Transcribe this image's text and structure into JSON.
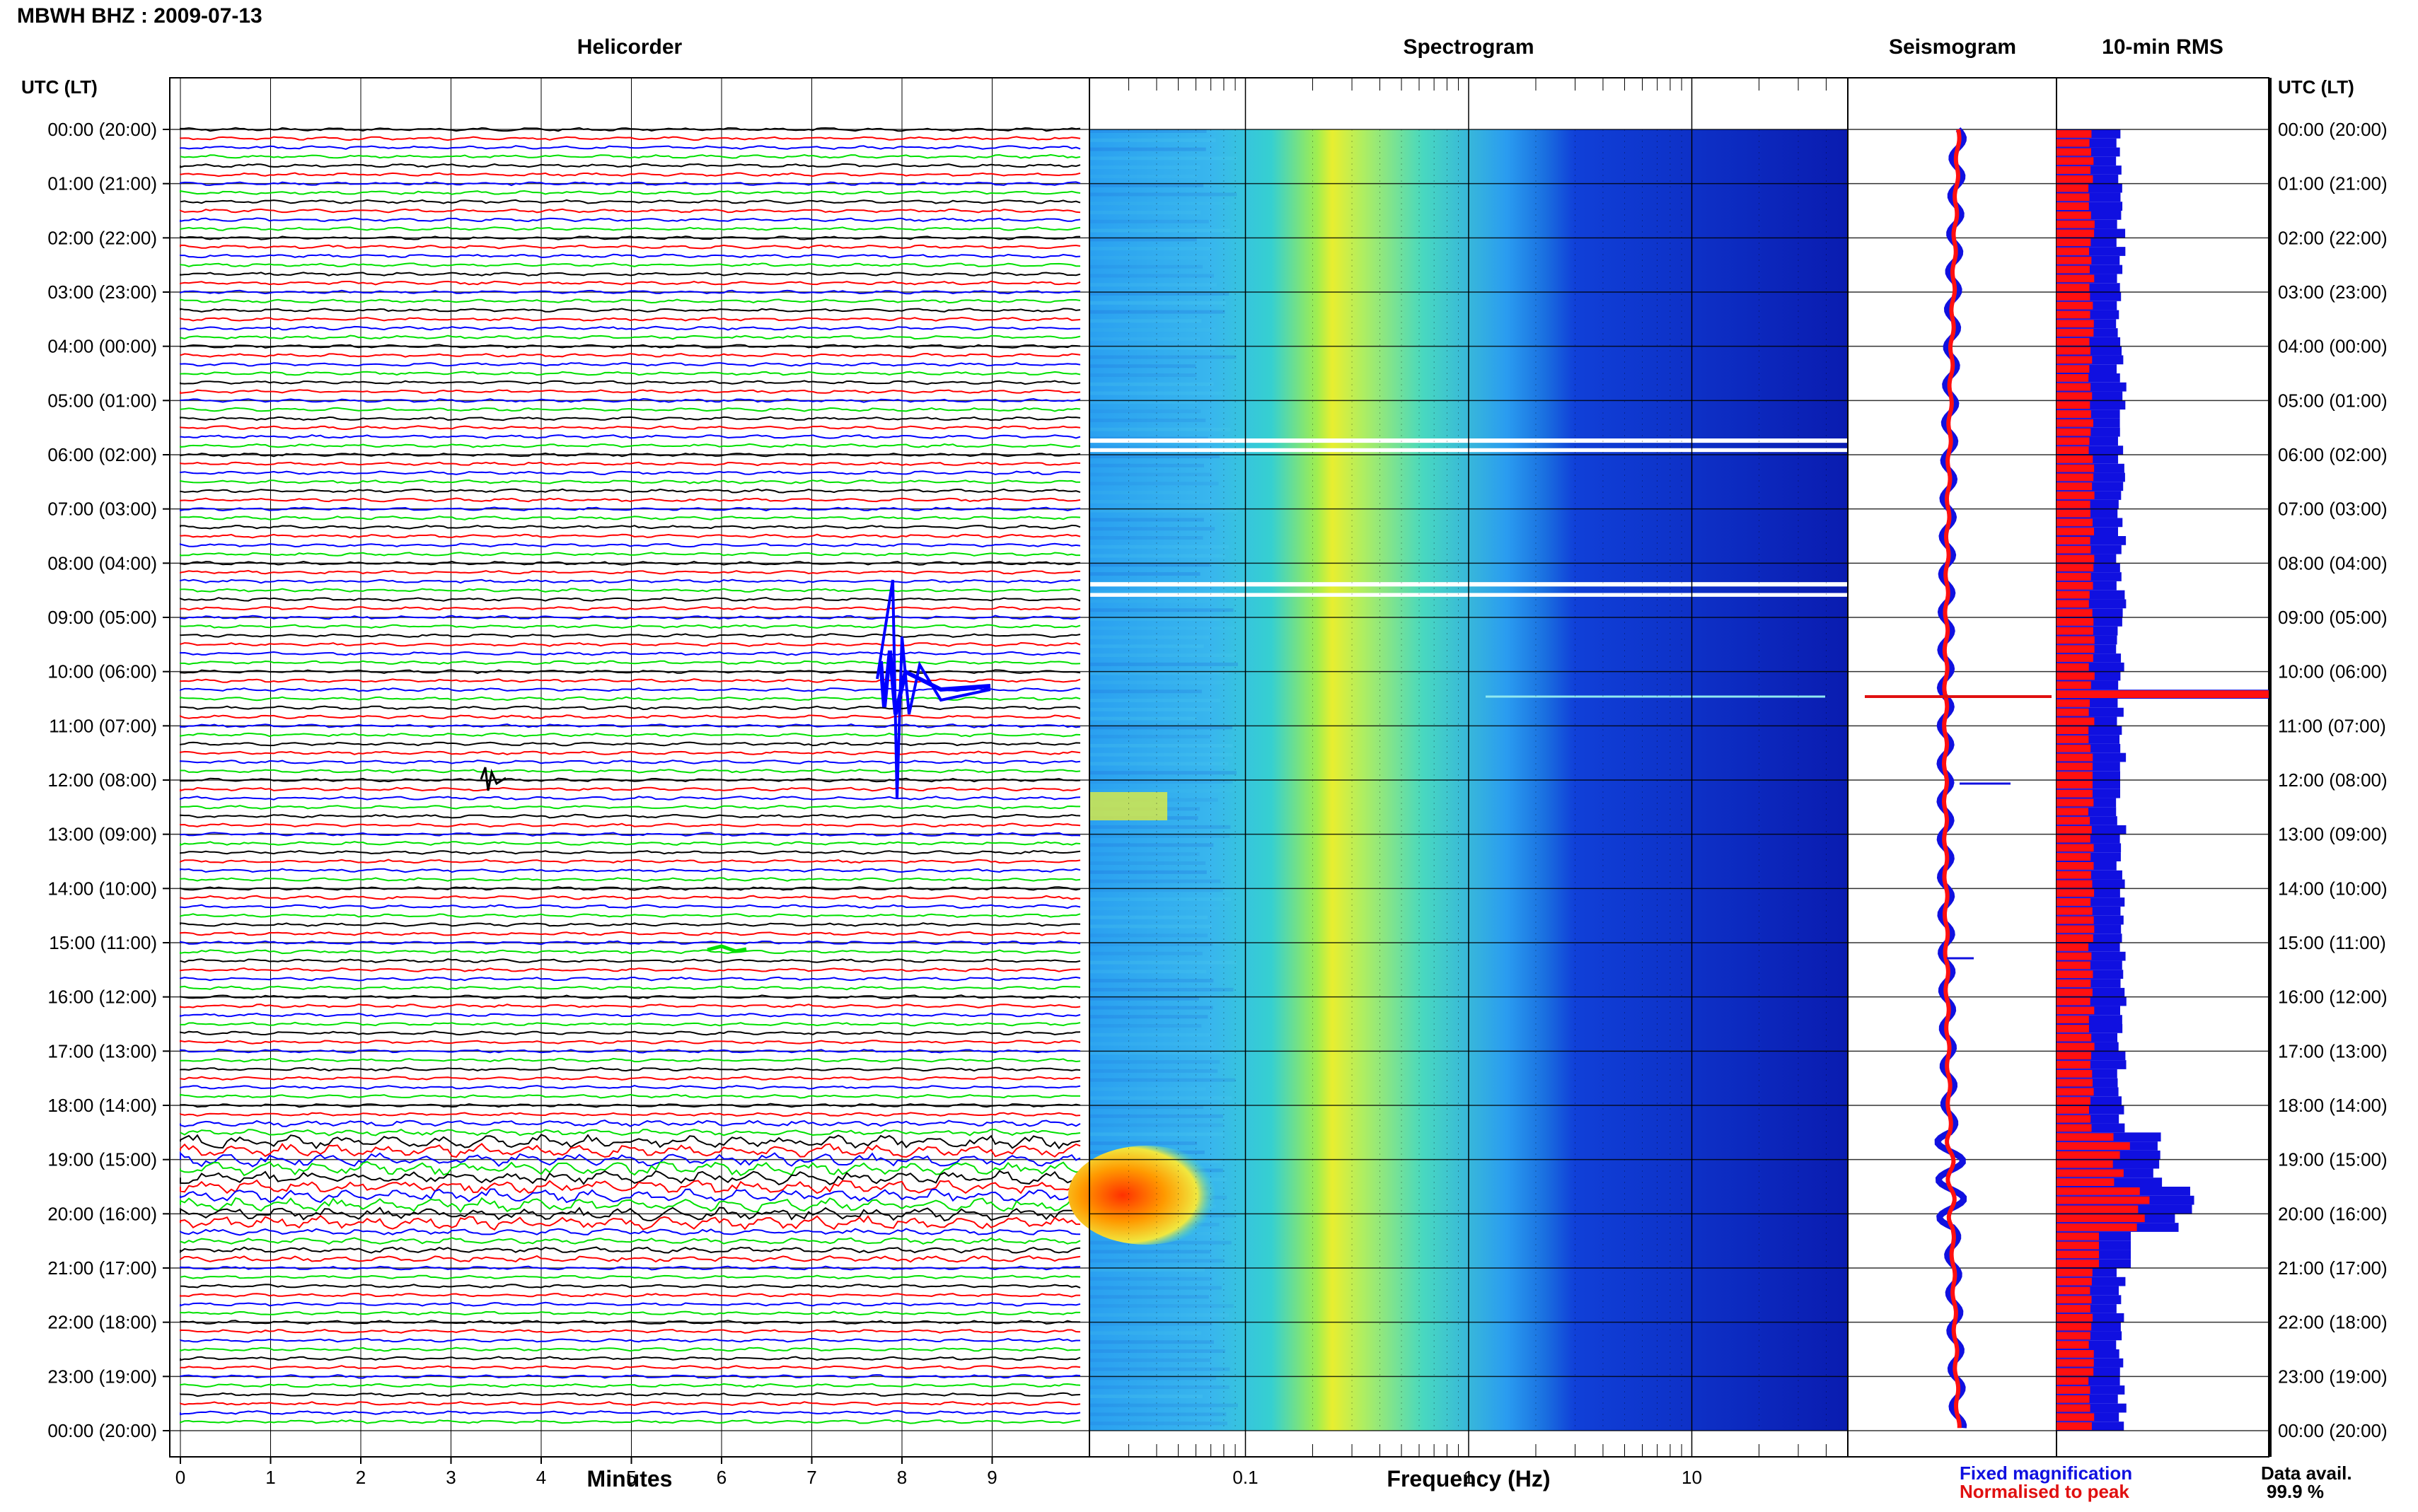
{
  "header": {
    "title": "MBWH BHZ : 2009-07-13"
  },
  "panels": {
    "helicorder": "Helicorder",
    "spectrogram": "Spectrogram",
    "seismogram": "Seismogram",
    "rms": "10-min RMS"
  },
  "axes": {
    "utc_header": "UTC (LT)",
    "minutes_label": "Minutes",
    "frequency_label": "Frequency (Hz)",
    "minute_ticks": [
      "0",
      "1",
      "2",
      "3",
      "4",
      "5",
      "6",
      "7",
      "8",
      "9"
    ],
    "frequency_ticks": [
      "0.1",
      "1",
      "10"
    ]
  },
  "time_labels": [
    "00:00 (20:00)",
    "01:00 (21:00)",
    "02:00 (22:00)",
    "03:00 (23:00)",
    "04:00 (00:00)",
    "05:00 (01:00)",
    "06:00 (02:00)",
    "07:00 (03:00)",
    "08:00 (04:00)",
    "09:00 (05:00)",
    "10:00 (06:00)",
    "11:00 (07:00)",
    "12:00 (08:00)",
    "13:00 (09:00)",
    "14:00 (10:00)",
    "15:00 (11:00)",
    "16:00 (12:00)",
    "17:00 (13:00)",
    "18:00 (14:00)",
    "19:00 (15:00)",
    "20:00 (16:00)",
    "21:00 (17:00)",
    "22:00 (18:00)",
    "23:00 (19:00)",
    "00:00 (20:00)"
  ],
  "legend": {
    "fixed": "Fixed magnification",
    "normalised": "Normalised to peak"
  },
  "availability": {
    "label": "Data avail.",
    "value": "99.9 %"
  },
  "colors": {
    "trace_cycle": [
      "#000000",
      "#ff0000",
      "#0000ff",
      "#00e000"
    ],
    "fixed": "#1010e0",
    "normalised": "#e01010"
  },
  "chart_data": [
    {
      "type": "line",
      "title": "Helicorder",
      "xlabel": "Minutes",
      "xlim": [
        0,
        10
      ],
      "y_unit": "hours UTC",
      "ylim": [
        0,
        24
      ],
      "events_hours": [
        10.3,
        12.0,
        19.7,
        20.4
      ],
      "minutes_per_trace": 10
    },
    {
      "type": "heatmap",
      "title": "Spectrogram",
      "xlabel": "Frequency (Hz)",
      "xscale": "log",
      "xlim": [
        0.02,
        50
      ],
      "ylim": [
        0,
        24
      ],
      "gaps_hours": [
        5.7,
        5.9,
        8.3,
        8.6
      ],
      "low_freq_energy_hours": [
        [
          11.5,
          13.0
        ],
        [
          18.5,
          21.0
        ]
      ],
      "secondary_microseism_hz": 0.25,
      "spectral_line_hz": 10
    },
    {
      "type": "line",
      "title": "Seismogram",
      "series": [
        {
          "name": "Fixed magnification",
          "hours": [
            0,
            10.5,
            12.0,
            18.5,
            19.5,
            20.0,
            24
          ]
        },
        {
          "name": "Normalised to peak",
          "hours": [
            0,
            24
          ]
        }
      ]
    },
    {
      "type": "bar",
      "title": "10-min RMS",
      "orientation": "horizontal",
      "series": [
        {
          "name": "Fixed magnification",
          "hours": [
            0,
            6,
            10.5,
            12.0,
            18.5,
            19.5,
            19.9,
            20.4,
            24
          ],
          "values": [
            0.3,
            0.28,
            1.0,
            0.3,
            0.26,
            0.55,
            0.65,
            0.4,
            0.3
          ]
        },
        {
          "name": "Normalised to peak",
          "hours": [
            0,
            6,
            10.5,
            12.0,
            18.5,
            19.5,
            19.9,
            20.4,
            24
          ],
          "values": [
            0.17,
            0.16,
            1.0,
            0.17,
            0.16,
            0.35,
            0.45,
            0.25,
            0.17
          ]
        }
      ]
    }
  ]
}
